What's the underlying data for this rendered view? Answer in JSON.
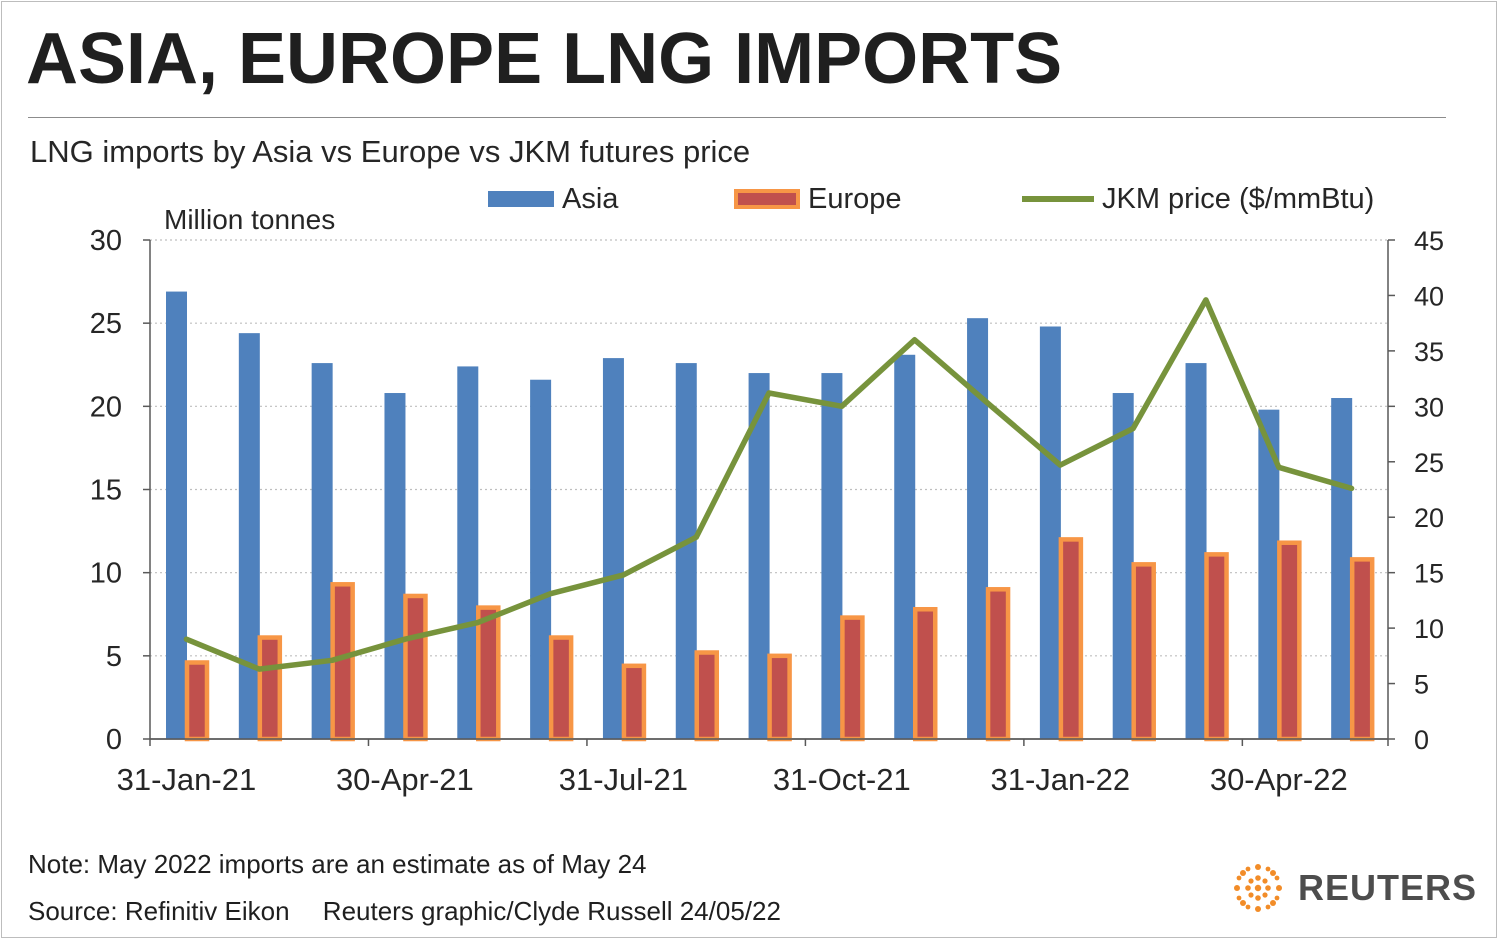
{
  "headline": "ASIA, EUROPE LNG IMPORTS",
  "subtitle": "LNG imports by Asia vs Europe vs JKM futures price",
  "legend": {
    "asia": "Asia",
    "europe": "Europe",
    "jkm": "JKM price ($/mmBtu)"
  },
  "unit_label": "Million tonnes",
  "note": "Note: May 2022 imports are an estimate as of May 24",
  "source": "Source: Refinitiv Eikon",
  "credit": "Reuters graphic/Clyde Russell 24/05/22",
  "logo": {
    "text": "REUTERS",
    "icon": "reuters-dot-logo-icon"
  },
  "colors": {
    "asia": "#4f81bd",
    "europe_fill": "#c0504d",
    "europe_border": "#f79646",
    "jkm": "#77933c",
    "logo_orange": "#f28c28"
  },
  "chart_data": {
    "type": "bar",
    "categories": [
      "Jan-21",
      "Feb-21",
      "Mar-21",
      "Apr-21",
      "May-21",
      "Jun-21",
      "Jul-21",
      "Aug-21",
      "Sep-21",
      "Oct-21",
      "Nov-21",
      "Dec-21",
      "Jan-22",
      "Feb-22",
      "Mar-22",
      "Apr-22",
      "May-22"
    ],
    "x_tick_labels": [
      "31-Jan-21",
      "30-Apr-21",
      "31-Jul-21",
      "31-Oct-21",
      "31-Jan-22",
      "30-Apr-22"
    ],
    "series": [
      {
        "name": "Asia",
        "type": "bar",
        "axis": "left",
        "values": [
          26.9,
          24.4,
          22.6,
          20.8,
          22.4,
          21.6,
          22.9,
          22.6,
          22.0,
          22.0,
          23.1,
          25.3,
          24.8,
          20.8,
          22.6,
          19.8,
          20.5
        ]
      },
      {
        "name": "Europe",
        "type": "bar",
        "axis": "left",
        "values": [
          4.6,
          6.1,
          9.3,
          8.6,
          7.9,
          6.1,
          4.4,
          5.2,
          5.0,
          7.3,
          7.8,
          9.0,
          12.0,
          10.5,
          11.1,
          11.8,
          10.8
        ]
      },
      {
        "name": "JKM price ($/mmBtu)",
        "type": "line",
        "axis": "right",
        "values": [
          9.0,
          6.3,
          7.1,
          9.0,
          10.5,
          13.1,
          14.8,
          18.2,
          31.2,
          30.0,
          36.0,
          30.3,
          24.7,
          28.0,
          39.6,
          24.5,
          22.6
        ]
      }
    ],
    "y_left": {
      "min": 0,
      "max": 30,
      "ticks": [
        0,
        5,
        10,
        15,
        20,
        25,
        30
      ]
    },
    "y_right": {
      "min": 0,
      "max": 45,
      "ticks": [
        0,
        5,
        10,
        15,
        20,
        25,
        30,
        35,
        40,
        45
      ]
    },
    "grid": "horizontal dotted",
    "legend_position": "top"
  }
}
